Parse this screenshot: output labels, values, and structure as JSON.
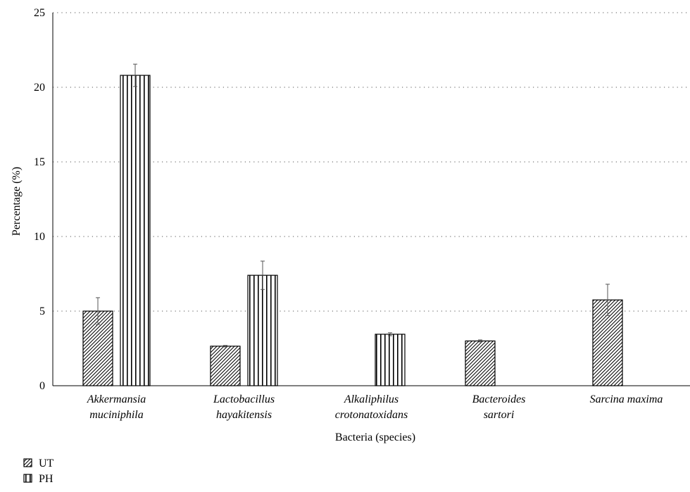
{
  "chart_data": {
    "type": "bar",
    "title": "",
    "xlabel": "Bacteria (species)",
    "ylabel": "Percentage (%)",
    "ylim": [
      0,
      25
    ],
    "yticks": [
      0,
      5,
      10,
      15,
      20,
      25
    ],
    "grid": true,
    "legend_position": "bottom-left",
    "categories": [
      [
        "Akkermansia",
        "muciniphila"
      ],
      [
        "Lactobacillus",
        "hayakitensis"
      ],
      [
        "Alkaliphilus",
        "crotonatoxidans"
      ],
      [
        "Bacteroides",
        "sartori"
      ],
      [
        "Sarcina maxima"
      ]
    ],
    "series": [
      {
        "name": "UT",
        "pattern": "diagonal-hatch",
        "values": [
          5.0,
          2.65,
          0,
          3.0,
          5.75
        ],
        "errors": [
          0.9,
          0.05,
          0,
          0.07,
          1.05
        ]
      },
      {
        "name": "PH",
        "pattern": "vertical-stripes",
        "values": [
          20.8,
          7.4,
          3.45,
          0,
          0
        ],
        "errors": [
          0.75,
          0.95,
          0.1,
          0,
          0
        ]
      }
    ]
  }
}
